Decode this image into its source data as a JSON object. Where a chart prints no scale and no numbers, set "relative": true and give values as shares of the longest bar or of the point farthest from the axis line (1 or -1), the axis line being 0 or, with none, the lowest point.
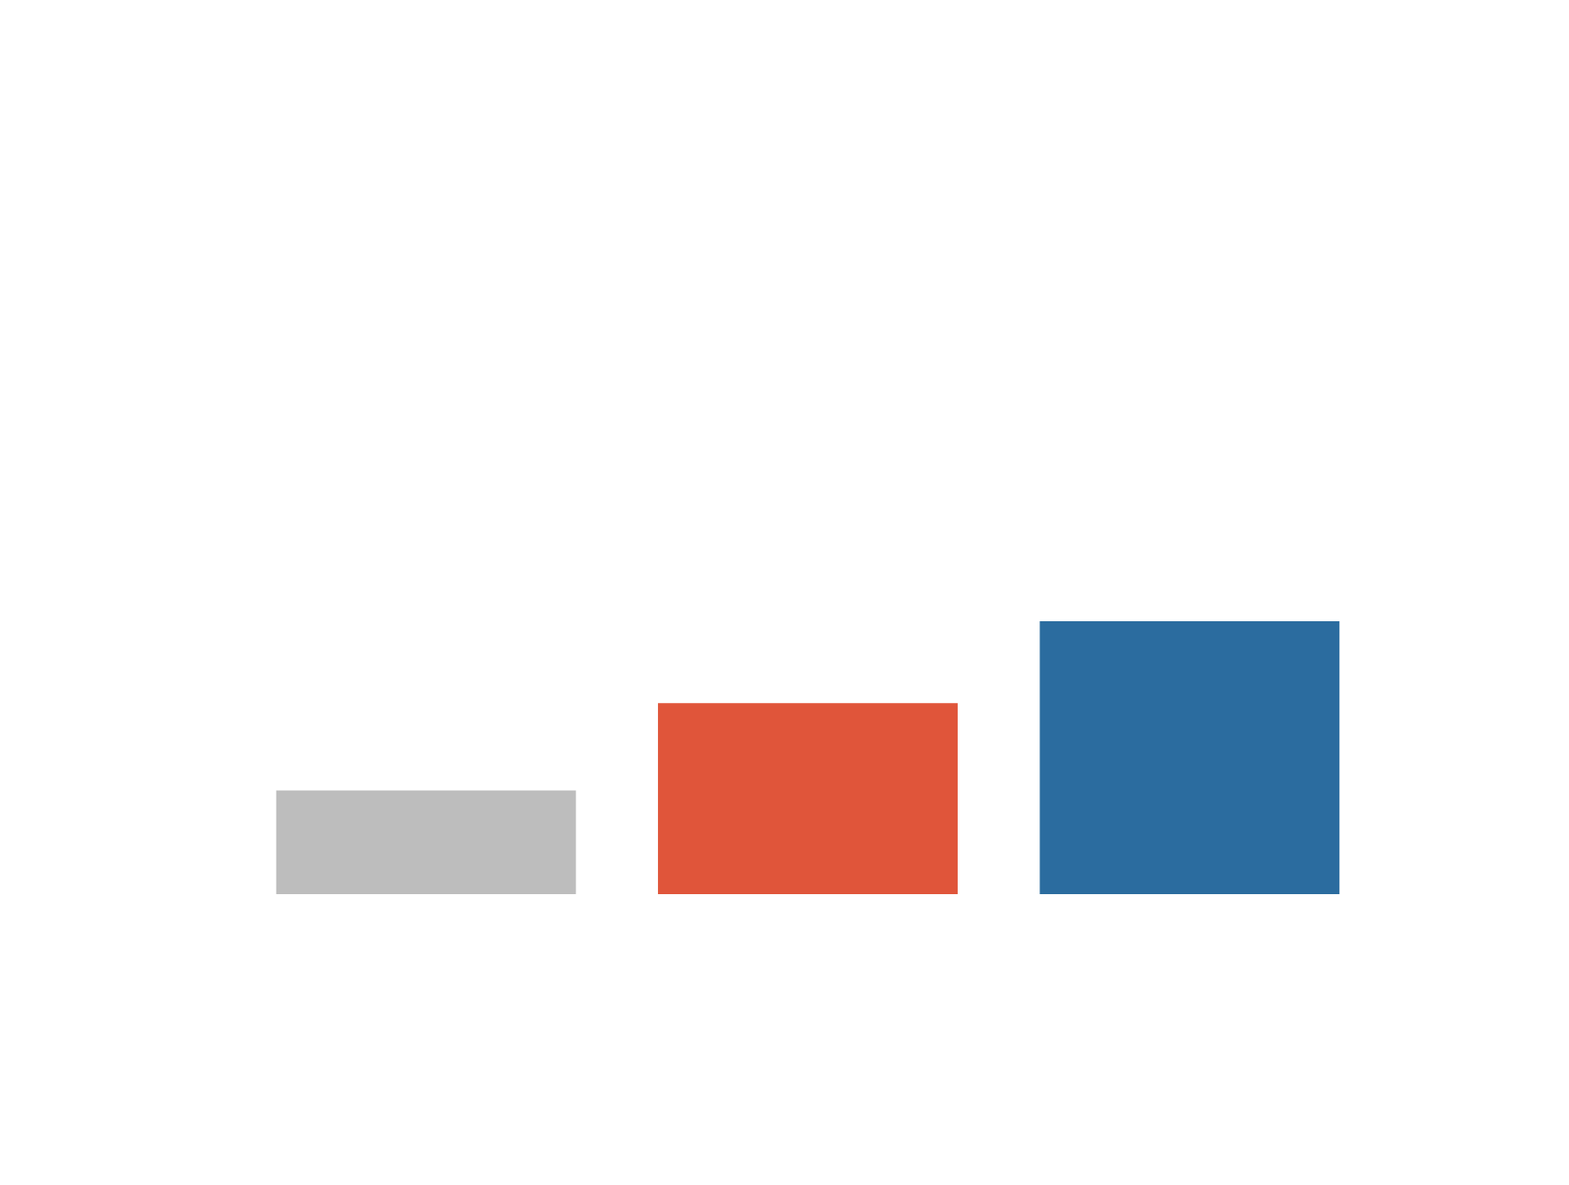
{
  "chart_data": {
    "type": "bar",
    "relative": true,
    "categories": [
      null,
      null,
      null
    ],
    "values": [
      0.38,
      0.7,
      1
    ],
    "colors": [
      "#bdbdbd",
      "#e0553a",
      "#2b6c9f"
    ],
    "legend": false
  }
}
